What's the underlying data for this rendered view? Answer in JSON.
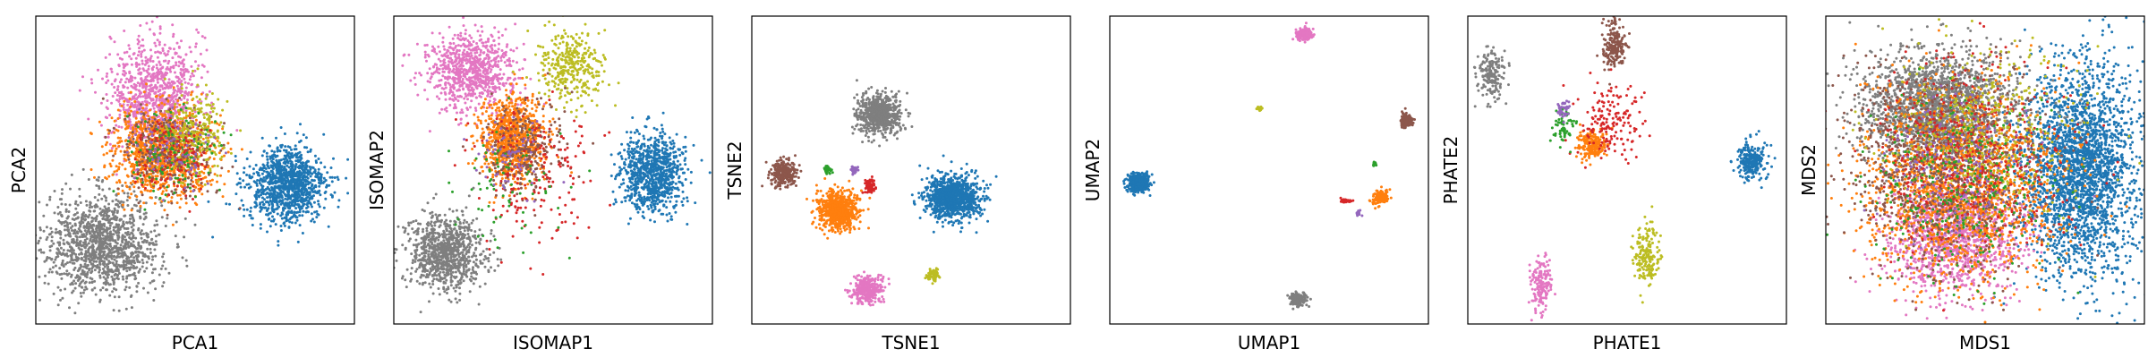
{
  "figure": {
    "panels": [
      "PCA",
      "ISOMAP",
      "TSNE",
      "UMAP",
      "PHATE",
      "MDS"
    ]
  },
  "cluster_colors": {
    "blue": "#1f77b4",
    "orange": "#ff7f0e",
    "green": "#2ca02c",
    "red": "#d62728",
    "purple": "#9467bd",
    "brown": "#8c564b",
    "pink": "#e377c2",
    "gray": "#7f7f7f",
    "olive": "#bcbd22"
  },
  "chart_data": [
    {
      "type": "scatter",
      "xlabel": "PCA1",
      "ylabel": "PCA2",
      "xlim": [
        0,
        1
      ],
      "ylim": [
        0,
        1
      ],
      "ticks": false,
      "grid": false,
      "series": [
        {
          "color": "gray",
          "n": 1300,
          "cx": 0.21,
          "cy": 0.26,
          "sx": 0.09,
          "sy": 0.08
        },
        {
          "color": "blue",
          "n": 1100,
          "cx": 0.79,
          "cy": 0.45,
          "sx": 0.06,
          "sy": 0.06
        },
        {
          "color": "pink",
          "n": 900,
          "cx": 0.37,
          "cy": 0.75,
          "sx": 0.07,
          "sy": 0.09
        },
        {
          "color": "orange",
          "n": 1100,
          "cx": 0.4,
          "cy": 0.56,
          "sx": 0.08,
          "sy": 0.07
        },
        {
          "color": "brown",
          "n": 300,
          "cx": 0.42,
          "cy": 0.56,
          "sx": 0.07,
          "sy": 0.07
        },
        {
          "color": "olive",
          "n": 250,
          "cx": 0.5,
          "cy": 0.62,
          "sx": 0.05,
          "sy": 0.07
        },
        {
          "color": "green",
          "n": 120,
          "cx": 0.43,
          "cy": 0.55,
          "sx": 0.07,
          "sy": 0.07
        },
        {
          "color": "red",
          "n": 120,
          "cx": 0.43,
          "cy": 0.53,
          "sx": 0.06,
          "sy": 0.07
        },
        {
          "color": "purple",
          "n": 80,
          "cx": 0.42,
          "cy": 0.58,
          "sx": 0.06,
          "sy": 0.06
        }
      ]
    },
    {
      "type": "scatter",
      "xlabel": "ISOMAP1",
      "ylabel": "ISOMAP2",
      "xlim": [
        0,
        1
      ],
      "ylim": [
        0,
        1
      ],
      "ticks": false,
      "grid": false,
      "series": [
        {
          "color": "gray",
          "n": 900,
          "cx": 0.16,
          "cy": 0.23,
          "sx": 0.06,
          "sy": 0.06
        },
        {
          "color": "blue",
          "n": 900,
          "cx": 0.81,
          "cy": 0.49,
          "sx": 0.05,
          "sy": 0.06
        },
        {
          "color": "pink",
          "n": 800,
          "cx": 0.24,
          "cy": 0.82,
          "sx": 0.07,
          "sy": 0.06
        },
        {
          "color": "olive",
          "n": 350,
          "cx": 0.55,
          "cy": 0.84,
          "sx": 0.05,
          "sy": 0.06
        },
        {
          "color": "orange",
          "n": 900,
          "cx": 0.37,
          "cy": 0.6,
          "sx": 0.05,
          "sy": 0.07
        },
        {
          "color": "brown",
          "n": 250,
          "cx": 0.4,
          "cy": 0.57,
          "sx": 0.06,
          "sy": 0.08
        },
        {
          "color": "red",
          "n": 180,
          "cx": 0.44,
          "cy": 0.5,
          "sx": 0.1,
          "sy": 0.12
        },
        {
          "color": "green",
          "n": 80,
          "cx": 0.35,
          "cy": 0.45,
          "sx": 0.08,
          "sy": 0.1
        },
        {
          "color": "purple",
          "n": 60,
          "cx": 0.36,
          "cy": 0.55,
          "sx": 0.06,
          "sy": 0.06
        }
      ]
    },
    {
      "type": "scatter",
      "xlabel": "TSNE1",
      "ylabel": "TSNE2",
      "xlim": [
        0,
        1
      ],
      "ylim": [
        0,
        1
      ],
      "ticks": false,
      "grid": false,
      "series": [
        {
          "color": "gray",
          "n": 700,
          "cx": 0.4,
          "cy": 0.68,
          "sx": 0.034,
          "sy": 0.032
        },
        {
          "color": "blue",
          "n": 1100,
          "cx": 0.63,
          "cy": 0.41,
          "sx": 0.042,
          "sy": 0.035
        },
        {
          "color": "orange",
          "n": 700,
          "cx": 0.27,
          "cy": 0.37,
          "sx": 0.032,
          "sy": 0.03
        },
        {
          "color": "brown",
          "n": 250,
          "cx": 0.1,
          "cy": 0.49,
          "sx": 0.02,
          "sy": 0.02
        },
        {
          "color": "pink",
          "n": 350,
          "cx": 0.36,
          "cy": 0.11,
          "sx": 0.022,
          "sy": 0.022
        },
        {
          "color": "olive",
          "n": 80,
          "cx": 0.57,
          "cy": 0.16,
          "sx": 0.009,
          "sy": 0.009
        },
        {
          "color": "red",
          "n": 80,
          "cx": 0.37,
          "cy": 0.45,
          "sx": 0.01,
          "sy": 0.01
        },
        {
          "color": "green",
          "n": 30,
          "cx": 0.24,
          "cy": 0.5,
          "sx": 0.006,
          "sy": 0.006
        },
        {
          "color": "purple",
          "n": 30,
          "cx": 0.32,
          "cy": 0.5,
          "sx": 0.007,
          "sy": 0.007
        }
      ]
    },
    {
      "type": "scatter",
      "xlabel": "UMAP1",
      "ylabel": "UMAP2",
      "xlim": [
        0,
        1
      ],
      "ylim": [
        0,
        1
      ],
      "ticks": false,
      "grid": false,
      "series": [
        {
          "color": "pink",
          "n": 200,
          "cx": 0.61,
          "cy": 0.94,
          "sx": 0.012,
          "sy": 0.01
        },
        {
          "color": "blue",
          "n": 400,
          "cx": 0.09,
          "cy": 0.46,
          "sx": 0.017,
          "sy": 0.015
        },
        {
          "color": "gray",
          "n": 200,
          "cx": 0.59,
          "cy": 0.08,
          "sx": 0.013,
          "sy": 0.011
        },
        {
          "color": "brown",
          "n": 150,
          "cx": 0.93,
          "cy": 0.66,
          "sx": 0.009,
          "sy": 0.011
        },
        {
          "color": "orange",
          "n": 150,
          "cx": 0.85,
          "cy": 0.41,
          "sx": 0.012,
          "sy": 0.011
        },
        {
          "color": "olive",
          "n": 30,
          "cx": 0.47,
          "cy": 0.7,
          "sx": 0.004,
          "sy": 0.004
        },
        {
          "color": "red",
          "n": 40,
          "cx": 0.74,
          "cy": 0.4,
          "sx": 0.008,
          "sy": 0.003
        },
        {
          "color": "green",
          "n": 15,
          "cx": 0.83,
          "cy": 0.52,
          "sx": 0.003,
          "sy": 0.004
        },
        {
          "color": "purple",
          "n": 15,
          "cx": 0.78,
          "cy": 0.36,
          "sx": 0.004,
          "sy": 0.004
        }
      ]
    },
    {
      "type": "scatter",
      "xlabel": "PHATE1",
      "ylabel": "PHATE2",
      "xlim": [
        0,
        1
      ],
      "ylim": [
        0,
        1
      ],
      "ticks": false,
      "grid": false,
      "series": [
        {
          "color": "gray",
          "n": 180,
          "cx": 0.07,
          "cy": 0.81,
          "sx": 0.022,
          "sy": 0.04
        },
        {
          "color": "brown",
          "n": 200,
          "cx": 0.46,
          "cy": 0.9,
          "sx": 0.018,
          "sy": 0.038
        },
        {
          "color": "blue",
          "n": 250,
          "cx": 0.89,
          "cy": 0.53,
          "sx": 0.022,
          "sy": 0.03
        },
        {
          "color": "orange",
          "n": 200,
          "cx": 0.39,
          "cy": 0.58,
          "sx": 0.022,
          "sy": 0.025
        },
        {
          "color": "red",
          "n": 160,
          "cx": 0.45,
          "cy": 0.65,
          "sx": 0.05,
          "sy": 0.06
        },
        {
          "color": "green",
          "n": 60,
          "cx": 0.3,
          "cy": 0.64,
          "sx": 0.018,
          "sy": 0.03
        },
        {
          "color": "purple",
          "n": 40,
          "cx": 0.3,
          "cy": 0.7,
          "sx": 0.012,
          "sy": 0.015
        },
        {
          "color": "olive",
          "n": 180,
          "cx": 0.56,
          "cy": 0.22,
          "sx": 0.02,
          "sy": 0.05
        },
        {
          "color": "pink",
          "n": 160,
          "cx": 0.23,
          "cy": 0.13,
          "sx": 0.017,
          "sy": 0.045
        }
      ]
    },
    {
      "type": "scatter",
      "xlabel": "MDS1",
      "ylabel": "MDS2",
      "xlim": [
        0,
        1
      ],
      "ylim": [
        0,
        1
      ],
      "ticks": false,
      "grid": false,
      "series": [
        {
          "color": "blue",
          "n": 2600,
          "cx": 0.8,
          "cy": 0.5,
          "sx": 0.09,
          "sy": 0.17
        },
        {
          "color": "gray",
          "n": 2000,
          "cx": 0.36,
          "cy": 0.7,
          "sx": 0.12,
          "sy": 0.09
        },
        {
          "color": "pink",
          "n": 1200,
          "cx": 0.4,
          "cy": 0.28,
          "sx": 0.1,
          "sy": 0.09
        },
        {
          "color": "orange",
          "n": 1800,
          "cx": 0.42,
          "cy": 0.45,
          "sx": 0.15,
          "sy": 0.15
        },
        {
          "color": "brown",
          "n": 900,
          "cx": 0.36,
          "cy": 0.5,
          "sx": 0.16,
          "sy": 0.17
        },
        {
          "color": "red",
          "n": 500,
          "cx": 0.45,
          "cy": 0.55,
          "sx": 0.15,
          "sy": 0.15
        },
        {
          "color": "olive",
          "n": 400,
          "cx": 0.5,
          "cy": 0.62,
          "sx": 0.15,
          "sy": 0.15
        },
        {
          "color": "green",
          "n": 300,
          "cx": 0.4,
          "cy": 0.45,
          "sx": 0.15,
          "sy": 0.15
        },
        {
          "color": "purple",
          "n": 200,
          "cx": 0.42,
          "cy": 0.5,
          "sx": 0.12,
          "sy": 0.12
        }
      ]
    }
  ]
}
